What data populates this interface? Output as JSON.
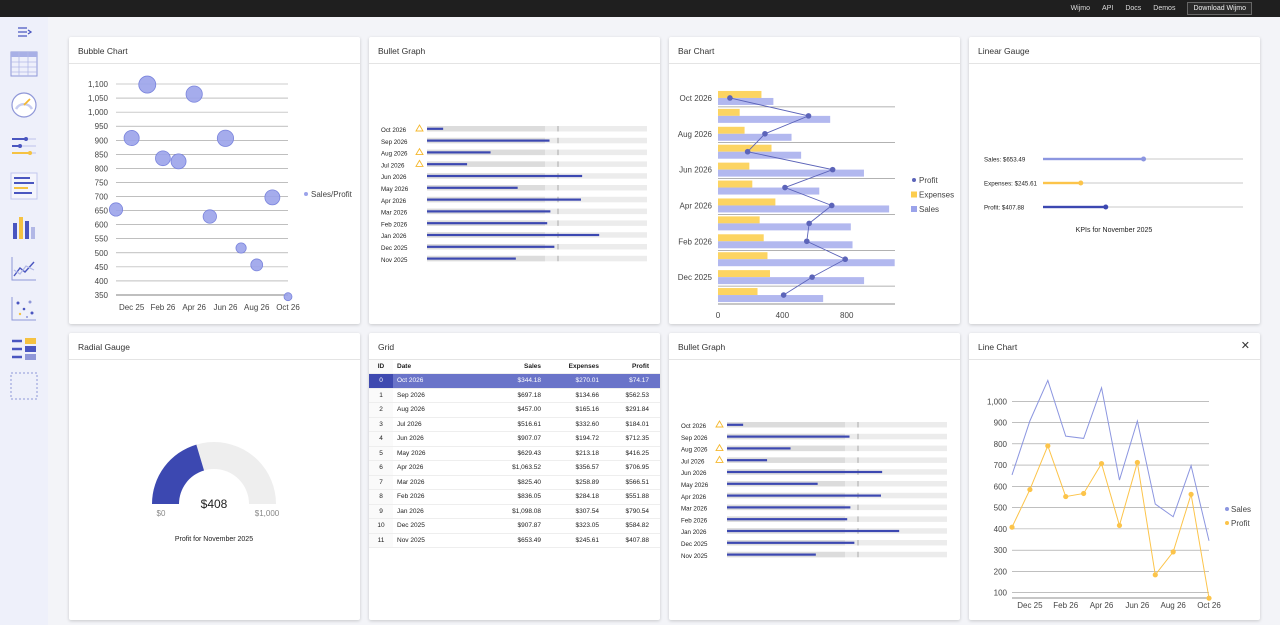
{
  "nav": {
    "links": [
      "Wijmo",
      "API",
      "Docs",
      "Demos"
    ],
    "download": "Download Wijmo"
  },
  "sidebar": {
    "icons": [
      "menu-collapse-icon",
      "grid-tile-icon",
      "radial-gauge-tile-icon",
      "linear-gauge-tile-icon",
      "bullet-graph-tile-icon",
      "bar-chart-tile-icon",
      "line-chart-tile-icon",
      "bubble-chart-tile-icon",
      "grid-bar-tile-icon",
      "blank-tile-icon"
    ]
  },
  "colors": {
    "sales": "#9ba3ea",
    "expenses": "#fccd4e",
    "profit": "#5c64b9",
    "bar_blue": "#3c48b1",
    "selected_row": "#6a74c9"
  },
  "bubble": {
    "title": "Bubble Chart",
    "legend": "Sales/Profit",
    "chart_data": {
      "type": "scatter",
      "x": [
        "Nov 2025",
        "Dec 2025",
        "Jan 2026",
        "Feb 2026",
        "Mar 2026",
        "Apr 2026",
        "May 2026",
        "Jun 2026",
        "Jul 2026",
        "Aug 2026",
        "Sep 2026",
        "Oct 2026"
      ],
      "xticks": [
        "Dec 25",
        "Feb 26",
        "Apr 26",
        "Jun 26",
        "Aug 26",
        "Oct 26"
      ],
      "y": [
        654,
        908,
        1098,
        836,
        825,
        1064,
        629,
        907,
        517,
        457,
        697,
        344
      ],
      "size": [
        408,
        583,
        791,
        552,
        567,
        707,
        416,
        712,
        184,
        292,
        563,
        74
      ],
      "ylim": [
        350,
        1100
      ],
      "yticks": [
        350,
        400,
        450,
        500,
        550,
        600,
        650,
        700,
        750,
        800,
        850,
        900,
        950,
        1000,
        1050,
        1100
      ]
    }
  },
  "bullet1": {
    "title": "Bullet Graph",
    "rows": [
      {
        "label": "Oct 2026",
        "value": 74.17,
        "warn": true
      },
      {
        "label": "Sep 2026",
        "value": 562.53,
        "warn": false
      },
      {
        "label": "Aug 2026",
        "value": 291.84,
        "warn": true
      },
      {
        "label": "Jul 2026",
        "value": 184.01,
        "warn": true
      },
      {
        "label": "Jun 2026",
        "value": 712.35,
        "warn": false
      },
      {
        "label": "May 2026",
        "value": 416.25,
        "warn": false
      },
      {
        "label": "Apr 2026",
        "value": 706.95,
        "warn": false
      },
      {
        "label": "Mar 2026",
        "value": 566.51,
        "warn": false
      },
      {
        "label": "Feb 2026",
        "value": 551.88,
        "warn": false
      },
      {
        "label": "Jan 2026",
        "value": 790.54,
        "warn": false
      },
      {
        "label": "Dec 2025",
        "value": 584.82,
        "warn": false
      },
      {
        "label": "Nov 2025",
        "value": 407.88,
        "warn": false
      }
    ],
    "max": 1000,
    "bad": 400,
    "target": 600
  },
  "bar": {
    "title": "Bar Chart",
    "legend": [
      "Profit",
      "Expenses",
      "Sales"
    ],
    "chart_data": {
      "type": "bar",
      "categories": [
        "Nov 2025",
        "Dec 2025",
        "Jan 2026",
        "Feb 2026",
        "Mar 2026",
        "Apr 2026",
        "May 2026",
        "Jun 2026",
        "Jul 2026",
        "Aug 2026",
        "Sep 2026",
        "Oct 2026"
      ],
      "ytick_labels": [
        "Dec 2025",
        "Feb 2026",
        "Apr 2026",
        "Jun 2026",
        "Aug 2026",
        "Oct 2026"
      ],
      "series": [
        {
          "name": "Sales",
          "values": [
            653.49,
            907.87,
            1098.08,
            836.05,
            825.4,
            1063.52,
            629.43,
            907.07,
            516.61,
            457.0,
            697.18,
            344.18
          ]
        },
        {
          "name": "Expenses",
          "values": [
            245.61,
            323.05,
            307.54,
            284.18,
            258.89,
            356.57,
            213.18,
            194.72,
            332.6,
            165.16,
            134.66,
            270.01
          ]
        },
        {
          "name": "Profit",
          "values": [
            407.88,
            584.82,
            790.54,
            551.88,
            566.51,
            706.95,
            416.25,
            712.35,
            184.01,
            291.84,
            562.53,
            74.17
          ]
        }
      ],
      "xticks": [
        0,
        400,
        800
      ],
      "xlim": [
        0,
        1100
      ]
    }
  },
  "linear": {
    "title": "Linear Gauge",
    "gauges": [
      {
        "label": "Sales: $653.49",
        "value": 653.49,
        "max": 1300,
        "color": "#8c96e0"
      },
      {
        "label": "Expenses: $245.61",
        "value": 245.61,
        "max": 1300,
        "color": "#fcc44a"
      },
      {
        "label": "Profit: $407.88",
        "value": 407.88,
        "max": 1300,
        "color": "#3c48b1"
      }
    ],
    "caption": "KPIs for November 2025"
  },
  "radial": {
    "title": "Radial Gauge",
    "value": 408,
    "min": 0,
    "max": 1000,
    "value_text": "$408",
    "min_text": "$0",
    "max_text": "$1,000",
    "caption": "Profit for November 2025"
  },
  "grid": {
    "title": "Grid",
    "columns": [
      "ID",
      "Date",
      "Sales",
      "Expenses",
      "Profit"
    ],
    "rows": [
      [
        "0",
        "Oct 2026",
        "$344.18",
        "$270.01",
        "$74.17"
      ],
      [
        "1",
        "Sep 2026",
        "$697.18",
        "$134.66",
        "$562.53"
      ],
      [
        "2",
        "Aug 2026",
        "$457.00",
        "$165.16",
        "$291.84"
      ],
      [
        "3",
        "Jul 2026",
        "$516.61",
        "$332.60",
        "$184.01"
      ],
      [
        "4",
        "Jun 2026",
        "$907.07",
        "$194.72",
        "$712.35"
      ],
      [
        "5",
        "May 2026",
        "$629.43",
        "$213.18",
        "$416.25"
      ],
      [
        "6",
        "Apr 2026",
        "$1,063.52",
        "$356.57",
        "$706.95"
      ],
      [
        "7",
        "Mar 2026",
        "$825.40",
        "$258.89",
        "$566.51"
      ],
      [
        "8",
        "Feb 2026",
        "$836.05",
        "$284.18",
        "$551.88"
      ],
      [
        "9",
        "Jan 2026",
        "$1,098.08",
        "$307.54",
        "$790.54"
      ],
      [
        "10",
        "Dec 2025",
        "$907.87",
        "$323.05",
        "$584.82"
      ],
      [
        "11",
        "Nov 2025",
        "$653.49",
        "$245.61",
        "$407.88"
      ]
    ]
  },
  "bullet2": {
    "title": "Bullet Graph"
  },
  "line": {
    "title": "Line Chart",
    "legend": [
      "Sales",
      "Profit"
    ],
    "chart_data": {
      "type": "line",
      "x": [
        "Nov 2025",
        "Dec 2025",
        "Jan 2026",
        "Feb 2026",
        "Mar 2026",
        "Apr 2026",
        "May 2026",
        "Jun 2026",
        "Jul 2026",
        "Aug 2026",
        "Sep 2026",
        "Oct 2026"
      ],
      "xticks": [
        "Dec 25",
        "Feb 26",
        "Apr 26",
        "Jun 26",
        "Aug 26",
        "Oct 26"
      ],
      "series": [
        {
          "name": "Sales",
          "values": [
            653.49,
            907.87,
            1098.08,
            836.05,
            825.4,
            1063.52,
            629.43,
            907.07,
            516.61,
            457.0,
            697.18,
            344.18
          ]
        },
        {
          "name": "Profit",
          "values": [
            407.88,
            584.82,
            790.54,
            551.88,
            566.51,
            706.95,
            416.25,
            712.35,
            184.01,
            291.84,
            562.53,
            74.17
          ]
        }
      ],
      "yticks": [
        100,
        200,
        300,
        400,
        500,
        600,
        700,
        800,
        900,
        1000
      ],
      "ylim": [
        75,
        1100
      ]
    }
  }
}
